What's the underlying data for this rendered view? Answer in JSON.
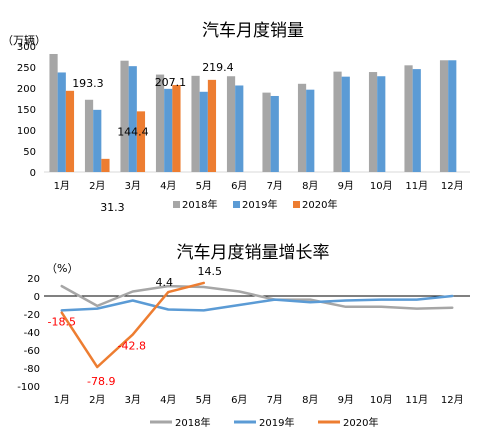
{
  "chart_data": [
    {
      "type": "bar",
      "title": "汽车月度销量",
      "ylabel": "（万辆）",
      "ylim": [
        0,
        300
      ],
      "yticks": [
        0,
        50,
        100,
        150,
        200,
        250,
        300
      ],
      "grid": false,
      "legend": "bottom",
      "categories": [
        "1月",
        "2月",
        "3月",
        "4月",
        "5月",
        "6月",
        "7月",
        "8月",
        "9月",
        "10月",
        "11月",
        "12月"
      ],
      "series": [
        {
          "name": "2018年",
          "color": "#a6a6a6",
          "values": [
            281,
            172,
            265,
            232,
            229,
            228,
            189,
            210,
            239,
            238,
            254,
            266
          ]
        },
        {
          "name": "2019年",
          "color": "#5b9bd5",
          "values": [
            237,
            148,
            252,
            198,
            191,
            206,
            181,
            196,
            227,
            228,
            245,
            266
          ]
        },
        {
          "name": "2020年",
          "color": "#ed7d31",
          "values": [
            193.3,
            31.3,
            144.4,
            207.1,
            219.4,
            null,
            null,
            null,
            null,
            null,
            null,
            null
          ]
        }
      ],
      "data_labels": [
        {
          "series": 2,
          "index": 0,
          "text": "193.3"
        },
        {
          "series": 2,
          "index": 1,
          "text": "31.3"
        },
        {
          "series": 2,
          "index": 2,
          "text": "144.4"
        },
        {
          "series": 2,
          "index": 3,
          "text": "207.1"
        },
        {
          "series": 2,
          "index": 4,
          "text": "219.4"
        }
      ]
    },
    {
      "type": "line",
      "title": "汽车月度销量增长率",
      "ylabel": "（%）",
      "ylim": [
        -100,
        20
      ],
      "yticks": [
        -100,
        -80,
        -60,
        -40,
        -20,
        0,
        20
      ],
      "grid": false,
      "legend": "bottom",
      "categories": [
        "1月",
        "2月",
        "3月",
        "4月",
        "5月",
        "6月",
        "7月",
        "8月",
        "9月",
        "10月",
        "11月",
        "12月"
      ],
      "series": [
        {
          "name": "2018年",
          "color": "#a6a6a6",
          "values": [
            11,
            -11,
            5,
            11,
            10,
            5,
            -4,
            -4,
            -12,
            -12,
            -14,
            -13
          ]
        },
        {
          "name": "2019年",
          "color": "#5b9bd5",
          "values": [
            -16,
            -14,
            -5,
            -15,
            -16,
            -10,
            -4,
            -7,
            -5,
            -4,
            -4,
            0
          ]
        },
        {
          "name": "2020年",
          "color": "#ed7d31",
          "values": [
            -18.5,
            -78.9,
            -42.8,
            4.4,
            14.5,
            null,
            null,
            null,
            null,
            null,
            null,
            null
          ]
        }
      ],
      "data_labels": [
        {
          "series": 2,
          "index": 0,
          "text": "-18.5"
        },
        {
          "series": 2,
          "index": 1,
          "text": "-78.9"
        },
        {
          "series": 2,
          "index": 2,
          "text": "-42.8"
        },
        {
          "series": 2,
          "index": 3,
          "text": "4.4"
        },
        {
          "series": 2,
          "index": 4,
          "text": "14.5"
        }
      ]
    }
  ]
}
